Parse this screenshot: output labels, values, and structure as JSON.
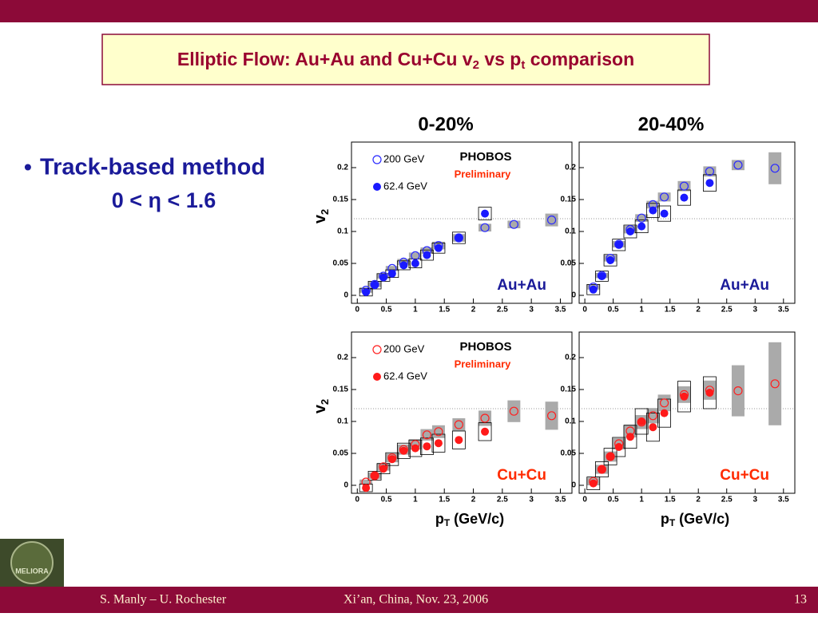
{
  "slide": {
    "title": [
      "Elliptic Flow: Au+Au and Cu+Cu v",
      "2",
      " vs p",
      "t",
      " comparison"
    ],
    "bullet": "Track-based method",
    "bullet_line2": "0 < η < 1.6",
    "logo_text": "MELIORA",
    "footer_left": "S. Manly – U. Rochester",
    "footer_center": "Xi’an, China, Nov. 23, 2006",
    "page_number": "13"
  },
  "chart_data": [
    {
      "type": "scatter",
      "title": "0-20%",
      "label": "Au+Au",
      "label_color": "#1a1a99",
      "y_label": [
        "v",
        "2"
      ],
      "annotations": [
        "PHOBOS",
        "Preliminary"
      ],
      "xlim": [
        -0.1,
        3.7
      ],
      "ylim": [
        -0.0125,
        0.24
      ],
      "xticks": [
        0,
        0.5,
        1,
        1.5,
        2,
        2.5,
        3,
        3.5
      ],
      "yticks": [
        0,
        0.05,
        0.1,
        0.15,
        0.2
      ],
      "hline": 0.12,
      "series": [
        {
          "name": "200 GeV",
          "marker": "open",
          "color": "#2a2aff",
          "box_color": "#aaaaaa",
          "x": [
            0.15,
            0.3,
            0.45,
            0.6,
            0.8,
            1.0,
            1.2,
            1.4,
            1.75,
            2.2,
            2.7,
            3.35
          ],
          "values": [
            0.008,
            0.017,
            0.03,
            0.042,
            0.052,
            0.062,
            0.07,
            0.078,
            0.09,
            0.106,
            0.111,
            0.118
          ],
          "syst": [
            0.004,
            0.004,
            0.004,
            0.004,
            0.005,
            0.005,
            0.005,
            0.006,
            0.006,
            0.006,
            0.006,
            0.01
          ]
        },
        {
          "name": "62.4 GeV",
          "marker": "filled",
          "color": "#1a1aff",
          "box_color": "none",
          "x": [
            0.15,
            0.3,
            0.45,
            0.6,
            0.8,
            1.0,
            1.2,
            1.4,
            1.75,
            2.2
          ],
          "values": [
            0.005,
            0.016,
            0.028,
            0.034,
            0.047,
            0.05,
            0.063,
            0.074,
            0.09,
            0.128
          ],
          "syst": [
            0.006,
            0.006,
            0.006,
            0.006,
            0.007,
            0.007,
            0.008,
            0.008,
            0.009,
            0.01
          ]
        }
      ]
    },
    {
      "type": "scatter",
      "title": "20-40%",
      "label": "Au+Au",
      "label_color": "#1a1a99",
      "xlim": [
        -0.1,
        3.7
      ],
      "ylim": [
        -0.0125,
        0.24
      ],
      "xticks": [
        0,
        0.5,
        1,
        1.5,
        2,
        2.5,
        3,
        3.5
      ],
      "yticks": [
        0,
        0.05,
        0.1,
        0.15,
        0.2
      ],
      "hline": 0.12,
      "series": [
        {
          "marker": "open",
          "color": "#2a2aff",
          "box_color": "#aaaaaa",
          "x": [
            0.15,
            0.3,
            0.45,
            0.6,
            0.8,
            1.0,
            1.2,
            1.4,
            1.75,
            2.2,
            2.7,
            3.35
          ],
          "values": [
            0.013,
            0.031,
            0.058,
            0.08,
            0.103,
            0.121,
            0.142,
            0.154,
            0.171,
            0.194,
            0.204,
            0.199
          ],
          "syst": [
            0.004,
            0.004,
            0.005,
            0.005,
            0.006,
            0.006,
            0.006,
            0.007,
            0.008,
            0.008,
            0.008,
            0.025
          ]
        },
        {
          "marker": "filled",
          "color": "#1a1aff",
          "box_color": "none",
          "x": [
            0.15,
            0.3,
            0.45,
            0.6,
            0.8,
            1.0,
            1.2,
            1.4,
            1.75,
            2.2
          ],
          "values": [
            0.009,
            0.03,
            0.055,
            0.079,
            0.1,
            0.108,
            0.133,
            0.128,
            0.153,
            0.176
          ],
          "syst": [
            0.008,
            0.008,
            0.009,
            0.009,
            0.01,
            0.01,
            0.011,
            0.012,
            0.012,
            0.013
          ]
        }
      ]
    },
    {
      "type": "scatter",
      "label": "Cu+Cu",
      "label_color": "#ff2a00",
      "y_label": [
        "v",
        "2"
      ],
      "x_label": [
        "p",
        "T",
        " (GeV/c)"
      ],
      "annotations": [
        "PHOBOS",
        "Preliminary"
      ],
      "xlim": [
        -0.1,
        3.7
      ],
      "ylim": [
        -0.0125,
        0.24
      ],
      "xticks": [
        0,
        0.5,
        1,
        1.5,
        2,
        2.5,
        3,
        3.5
      ],
      "yticks": [
        0,
        0.05,
        0.1,
        0.15,
        0.2
      ],
      "hline": 0.12,
      "series": [
        {
          "name": "200 GeV",
          "marker": "open",
          "color": "#ff2020",
          "box_color": "#aaaaaa",
          "x": [
            0.15,
            0.3,
            0.45,
            0.6,
            0.8,
            1.0,
            1.2,
            1.4,
            1.75,
            2.2,
            2.7,
            3.35
          ],
          "values": [
            0.005,
            0.015,
            0.029,
            0.043,
            0.056,
            0.064,
            0.079,
            0.084,
            0.095,
            0.105,
            0.116,
            0.109
          ],
          "syst": [
            0.004,
            0.005,
            0.006,
            0.007,
            0.008,
            0.008,
            0.009,
            0.01,
            0.01,
            0.012,
            0.017,
            0.022
          ]
        },
        {
          "name": "62.4 GeV",
          "marker": "filled",
          "color": "#ff1a1a",
          "box_color": "none",
          "x": [
            0.15,
            0.3,
            0.45,
            0.6,
            0.8,
            1.0,
            1.2,
            1.4,
            1.75,
            2.2
          ],
          "values": [
            -0.004,
            0.015,
            0.026,
            0.041,
            0.054,
            0.058,
            0.061,
            0.066,
            0.071,
            0.084
          ],
          "syst": [
            0.006,
            0.007,
            0.008,
            0.01,
            0.012,
            0.013,
            0.013,
            0.014,
            0.014,
            0.014
          ]
        }
      ]
    },
    {
      "type": "scatter",
      "label": "Cu+Cu",
      "label_color": "#ff2a00",
      "x_label": [
        "p",
        "T",
        " (GeV/c)"
      ],
      "xlim": [
        -0.1,
        3.7
      ],
      "ylim": [
        -0.0125,
        0.24
      ],
      "xticks": [
        0,
        0.5,
        1,
        1.5,
        2,
        2.5,
        3,
        3.5
      ],
      "yticks": [
        0,
        0.05,
        0.1,
        0.15,
        0.2
      ],
      "hline": 0.12,
      "series": [
        {
          "marker": "open",
          "color": "#ff2020",
          "box_color": "#aaaaaa",
          "x": [
            0.15,
            0.3,
            0.45,
            0.6,
            0.8,
            1.0,
            1.2,
            1.4,
            1.75,
            2.2,
            2.7,
            3.35
          ],
          "values": [
            0.006,
            0.025,
            0.045,
            0.065,
            0.085,
            0.099,
            0.109,
            0.129,
            0.142,
            0.149,
            0.148,
            0.159
          ],
          "syst": [
            0.006,
            0.007,
            0.008,
            0.009,
            0.01,
            0.011,
            0.012,
            0.013,
            0.013,
            0.015,
            0.04,
            0.065
          ]
        },
        {
          "marker": "filled",
          "color": "#ff1a1a",
          "box_color": "none",
          "x": [
            0.15,
            0.3,
            0.45,
            0.6,
            0.8,
            1.0,
            1.2,
            1.4,
            1.75,
            2.2
          ],
          "values": [
            0.003,
            0.025,
            0.045,
            0.06,
            0.076,
            0.1,
            0.091,
            0.113,
            0.139,
            0.145
          ],
          "syst": [
            0.01,
            0.012,
            0.013,
            0.015,
            0.018,
            0.02,
            0.022,
            0.022,
            0.024,
            0.025
          ]
        }
      ]
    }
  ]
}
